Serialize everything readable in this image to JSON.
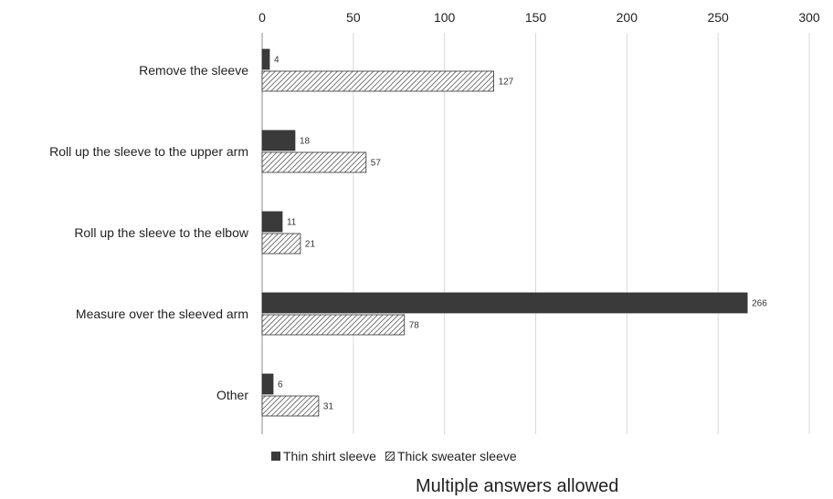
{
  "chart_data": {
    "type": "bar",
    "orientation": "horizontal",
    "categories": [
      "Remove the sleeve",
      "Roll up the sleeve to the upper arm",
      "Roll up the sleeve to the elbow",
      "Measure over the sleeved arm",
      "Other"
    ],
    "series": [
      {
        "name": "Thin shirt sleeve",
        "values": [
          4,
          18,
          11,
          266,
          6
        ],
        "color": "#3a3a3a",
        "pattern": "solid"
      },
      {
        "name": "Thick sweater sleeve",
        "values": [
          127,
          57,
          21,
          78,
          31
        ],
        "color": "#555555",
        "pattern": "diagonal-hatch"
      }
    ],
    "xlim": [
      0,
      300
    ],
    "xticks": [
      "0",
      "50",
      "100",
      "150",
      "200",
      "250",
      "300"
    ],
    "x_axis_position": "top",
    "grid": "vertical",
    "legend_position": "bottom",
    "note": "Multiple answers allowed"
  }
}
